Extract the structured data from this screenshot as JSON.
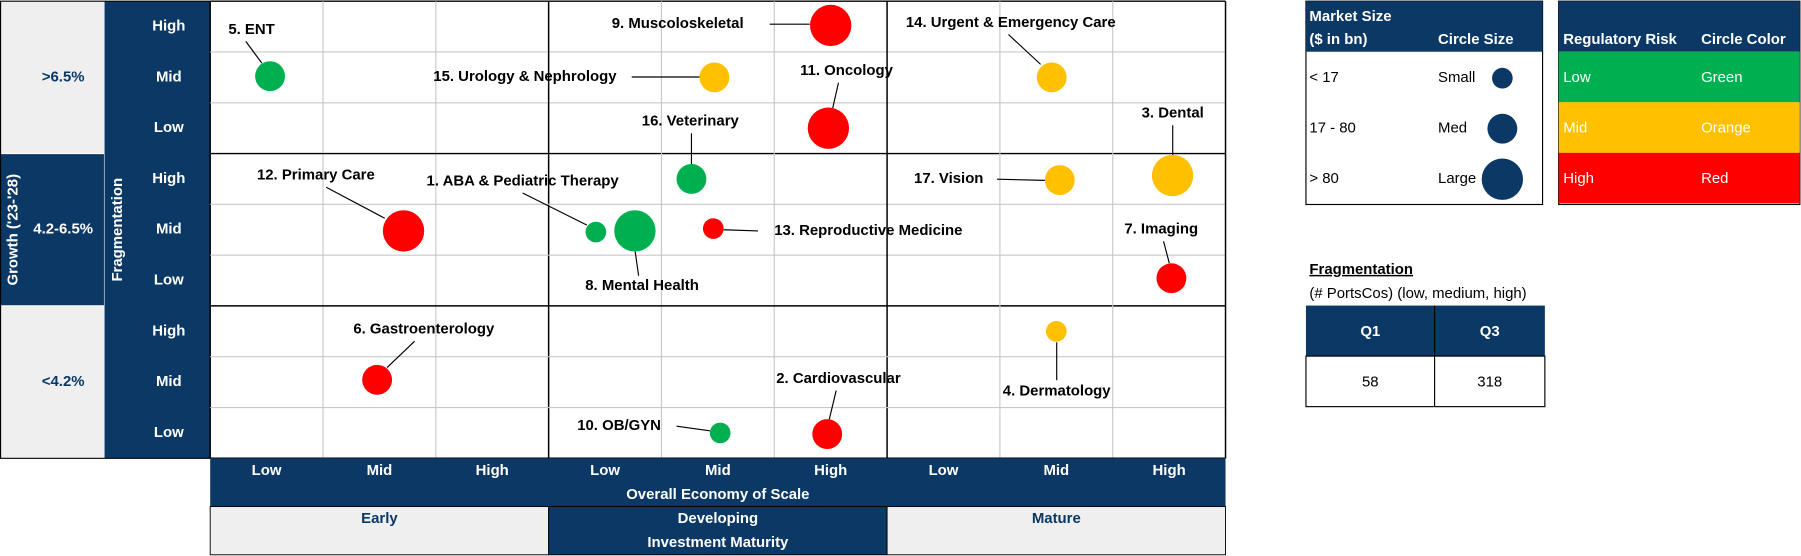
{
  "chart_data": {
    "type": "bubble",
    "y_title": "Growth ('23-'28)",
    "y_subtitle": "Fragmentation",
    "x_title": "Overall Economy of Scale",
    "x2_title": "Investment Maturity",
    "growth_bands": [
      ">6.5%",
      "4.2-6.5%",
      "<4.2%"
    ],
    "fragmentation_levels": [
      "High",
      "Mid",
      "Low"
    ],
    "maturity_bands": [
      "Early",
      "Developing",
      "Mature"
    ],
    "scale_levels": [
      "Low",
      "Mid",
      "High"
    ],
    "points": [
      {
        "label": "1. ABA & Pediatric Therapy",
        "growth": "4.2-6.5%",
        "fragmentation": "Mid",
        "maturity": "Developing",
        "scale": "Low",
        "size": "Small",
        "risk": "Low"
      },
      {
        "label": "2. Cardiovascular",
        "growth": "<4.2%",
        "fragmentation": "Low",
        "maturity": "Developing",
        "scale": "High",
        "size": "Med",
        "risk": "High"
      },
      {
        "label": "3. Dental",
        "growth": "4.2-6.5%",
        "fragmentation": "High",
        "maturity": "Mature",
        "scale": "High",
        "size": "Large",
        "risk": "Mid"
      },
      {
        "label": "4. Dermatology",
        "growth": "<4.2%",
        "fragmentation": "High",
        "maturity": "Mature",
        "scale": "Mid",
        "size": "Small",
        "risk": "Mid"
      },
      {
        "label": "5. ENT",
        "growth": ">6.5%",
        "fragmentation": "Mid",
        "maturity": "Early",
        "scale": "Low",
        "size": "Med",
        "risk": "Low"
      },
      {
        "label": "6. Gastroenterology",
        "growth": "<4.2%",
        "fragmentation": "Mid",
        "maturity": "Early",
        "scale": "Mid",
        "size": "Med",
        "risk": "High"
      },
      {
        "label": "7. Imaging",
        "growth": "4.2-6.5%",
        "fragmentation": "Low",
        "maturity": "Mature",
        "scale": "High",
        "size": "Med",
        "risk": "High"
      },
      {
        "label": "8. Mental Health",
        "growth": "4.2-6.5%",
        "fragmentation": "Mid",
        "maturity": "Developing",
        "scale": "Low",
        "size": "Large",
        "risk": "Low"
      },
      {
        "label": "9. Muscoloskeletal",
        "growth": ">6.5%",
        "fragmentation": "High",
        "maturity": "Developing",
        "scale": "High",
        "size": "Large",
        "risk": "High"
      },
      {
        "label": "10. OB/GYN",
        "growth": "<4.2%",
        "fragmentation": "Low",
        "maturity": "Developing",
        "scale": "Mid",
        "size": "Small",
        "risk": "Low"
      },
      {
        "label": "11. Oncology",
        "growth": ">6.5%",
        "fragmentation": "Low",
        "maturity": "Developing",
        "scale": "High",
        "size": "Large",
        "risk": "High"
      },
      {
        "label": "12. Primary Care",
        "growth": "4.2-6.5%",
        "fragmentation": "Mid",
        "maturity": "Early",
        "scale": "Mid",
        "size": "Large",
        "risk": "High"
      },
      {
        "label": "13. Reproductive Medicine",
        "growth": "4.2-6.5%",
        "fragmentation": "Mid",
        "maturity": "Developing",
        "scale": "Mid",
        "size": "Small",
        "risk": "High"
      },
      {
        "label": "14. Urgent & Emergency Care",
        "growth": ">6.5%",
        "fragmentation": "Mid",
        "maturity": "Mature",
        "scale": "Mid",
        "size": "Med",
        "risk": "Mid"
      },
      {
        "label": "15. Urology & Nephrology",
        "growth": ">6.5%",
        "fragmentation": "Mid",
        "maturity": "Developing",
        "scale": "Mid",
        "size": "Med",
        "risk": "Mid"
      },
      {
        "label": "16. Veterinary",
        "growth": "4.2-6.5%",
        "fragmentation": "High",
        "maturity": "Developing",
        "scale": "Mid",
        "size": "Med",
        "risk": "Low"
      },
      {
        "label": "17. Vision",
        "growth": "4.2-6.5%",
        "fragmentation": "High",
        "maturity": "Mature",
        "scale": "Mid",
        "size": "Med",
        "risk": "Mid"
      }
    ]
  },
  "size_legend": {
    "title": "Market Size",
    "subtitle": "($ in bn)",
    "column": "Circle Size",
    "rows": [
      {
        "range": "< 17",
        "size": "Small"
      },
      {
        "range": "17 - 80",
        "size": "Med"
      },
      {
        "range": "> 80",
        "size": "Large"
      }
    ]
  },
  "risk_legend": {
    "title": "Regulatory Risk",
    "column": "Circle Color",
    "rows": [
      {
        "risk": "Low",
        "color_name": "Green",
        "color": "#00b050"
      },
      {
        "risk": "Mid",
        "color_name": "Orange",
        "color": "#ffc000"
      },
      {
        "risk": "High",
        "color_name": "Red",
        "color": "#ff0000"
      }
    ]
  },
  "fragmentation_table": {
    "title": "Fragmentation",
    "subtitle": "(# PortsCos) (low, medium, high)",
    "headers": [
      "Q1",
      "Q3"
    ],
    "values": [
      58,
      318
    ]
  }
}
